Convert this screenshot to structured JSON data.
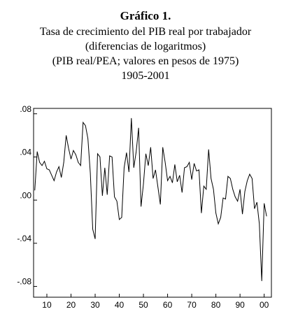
{
  "chart_data": {
    "type": "line",
    "title": "Gráfico 1.",
    "subtitle": [
      "Tasa de crecimiento del PIB real por trabajador",
      "(diferencias de logaritmos)",
      "(PIB real/PEA; valores en pesos de 1975)",
      "1905-2001"
    ],
    "color": "#000000",
    "x": [
      1905,
      1906,
      1907,
      1908,
      1909,
      1910,
      1911,
      1912,
      1913,
      1914,
      1915,
      1916,
      1917,
      1918,
      1919,
      1920,
      1921,
      1922,
      1923,
      1924,
      1925,
      1926,
      1927,
      1928,
      1929,
      1930,
      1931,
      1932,
      1933,
      1934,
      1935,
      1936,
      1937,
      1938,
      1939,
      1940,
      1941,
      1942,
      1943,
      1944,
      1945,
      1946,
      1947,
      1948,
      1949,
      1950,
      1951,
      1952,
      1953,
      1954,
      1955,
      1956,
      1957,
      1958,
      1959,
      1960,
      1961,
      1962,
      1963,
      1964,
      1965,
      1966,
      1967,
      1968,
      1969,
      1970,
      1971,
      1972,
      1973,
      1974,
      1975,
      1976,
      1977,
      1978,
      1979,
      1980,
      1981,
      1982,
      1983,
      1984,
      1985,
      1986,
      1987,
      1988,
      1989,
      1990,
      1991,
      1992,
      1993,
      1994,
      1995,
      1996,
      1997,
      1998,
      1999,
      2000,
      2001
    ],
    "values": [
      0.009,
      0.045,
      0.035,
      0.032,
      0.036,
      0.029,
      0.028,
      0.023,
      0.018,
      0.026,
      0.031,
      0.021,
      0.035,
      0.06,
      0.048,
      0.038,
      0.046,
      0.042,
      0.035,
      0.032,
      0.072,
      0.069,
      0.057,
      0.025,
      -0.027,
      -0.036,
      0.043,
      0.04,
      0.004,
      0.03,
      0.005,
      0.041,
      0.04,
      0.003,
      -0.001,
      -0.018,
      -0.016,
      0.03,
      0.044,
      0.026,
      0.076,
      0.03,
      0.045,
      0.067,
      -0.006,
      0.015,
      0.043,
      0.032,
      0.049,
      0.02,
      0.028,
      0.012,
      -0.004,
      0.049,
      0.035,
      0.018,
      0.022,
      0.016,
      0.033,
      0.017,
      0.023,
      0.007,
      0.03,
      0.031,
      0.035,
      0.019,
      0.034,
      0.027,
      0.028,
      -0.012,
      0.013,
      0.01,
      0.047,
      0.02,
      0.01,
      -0.012,
      -0.022,
      -0.016,
      0.002,
      0.001,
      0.022,
      0.02,
      0.01,
      0.003,
      -0.001,
      0.01,
      -0.013,
      0.008,
      0.018,
      0.024,
      0.02,
      -0.008,
      -0.002,
      -0.022,
      -0.075,
      -0.003,
      -0.015
    ],
    "xlim": [
      1904.5,
      2003
    ],
    "xticks": [
      {
        "value": 1910,
        "label": "10"
      },
      {
        "value": 1920,
        "label": "20"
      },
      {
        "value": 1930,
        "label": "30"
      },
      {
        "value": 1940,
        "label": "40"
      },
      {
        "value": 1950,
        "label": "50"
      },
      {
        "value": 1960,
        "label": "60"
      },
      {
        "value": 1970,
        "label": "70"
      },
      {
        "value": 1980,
        "label": "80"
      },
      {
        "value": 1990,
        "label": "90"
      },
      {
        "value": 2000,
        "label": "00"
      }
    ],
    "ylim": [
      -0.09,
      0.085
    ],
    "yticks": [
      {
        "value": -0.08,
        "label": "-.08"
      },
      {
        "value": -0.04,
        "label": "-.04"
      },
      {
        "value": 0,
        "label": ".00"
      },
      {
        "value": 0.04,
        "label": ".04"
      },
      {
        "value": 0.08,
        "label": ".08"
      }
    ]
  }
}
